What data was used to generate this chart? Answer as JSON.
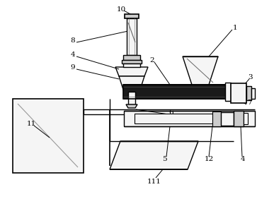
{
  "bg_color": "#ffffff",
  "line_color": "#000000",
  "line_width": 1.0,
  "fill_dark": "#1a1a1a",
  "fill_light": "#f5f5f5",
  "fill_mid": "#cccccc",
  "figsize": [
    3.63,
    2.99
  ],
  "dpi": 100
}
